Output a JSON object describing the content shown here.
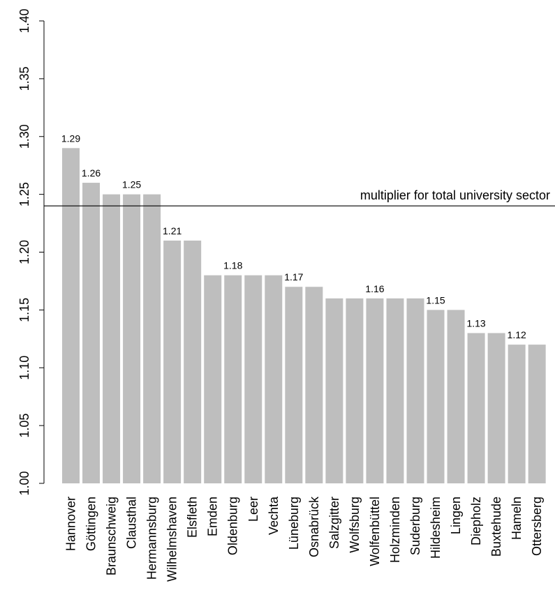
{
  "chart_data": {
    "type": "bar",
    "categories": [
      "Hannover",
      "Göttingen",
      "Braunschweig",
      "Clausthal",
      "Hermannsburg",
      "Wilhelmshaven",
      "Elsfleth",
      "Emden",
      "Oldenburg",
      "Leer",
      "Vechta",
      "Lüneburg",
      "Osnabrück",
      "Salzgitter",
      "Wolfsburg",
      "Wolfenbüttel",
      "Holzminden",
      "Suderburg",
      "Hildesheim",
      "Lingen",
      "Diepholz",
      "Buxtehude",
      "Hameln",
      "Ottersberg"
    ],
    "values": [
      1.29,
      1.26,
      1.25,
      1.25,
      1.25,
      1.21,
      1.21,
      1.18,
      1.18,
      1.18,
      1.18,
      1.17,
      1.17,
      1.16,
      1.16,
      1.16,
      1.16,
      1.16,
      1.15,
      1.15,
      1.13,
      1.13,
      1.12,
      1.12
    ],
    "data_labels": [
      {
        "index": 0,
        "text": "1.29"
      },
      {
        "index": 1,
        "text": "1.26"
      },
      {
        "index": 3,
        "text": "1.25"
      },
      {
        "index": 5,
        "text": "1.21"
      },
      {
        "index": 8,
        "text": "1.18"
      },
      {
        "index": 11,
        "text": "1.17"
      },
      {
        "index": 15,
        "text": "1.16"
      },
      {
        "index": 18,
        "text": "1.15"
      },
      {
        "index": 20,
        "text": "1.13"
      },
      {
        "index": 22,
        "text": "1.12"
      }
    ],
    "yticks": [
      "1.00",
      "1.05",
      "1.10",
      "1.15",
      "1.20",
      "1.25",
      "1.30",
      "1.35",
      "1.40"
    ],
    "ylim": [
      1.0,
      1.4
    ],
    "reference_line": {
      "value": 1.24,
      "label": "multiplier for total university sector"
    },
    "bar_color": "#bebebe",
    "grid": false,
    "title": "",
    "xlabel": "",
    "ylabel": ""
  }
}
